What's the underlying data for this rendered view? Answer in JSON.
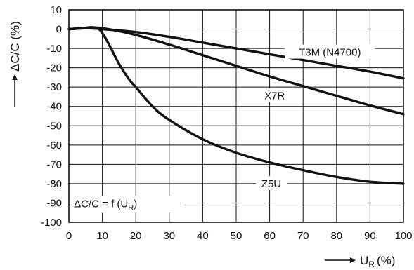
{
  "chart_data": {
    "type": "line",
    "ylabel": "ΔC/C (%)",
    "xlabel": {
      "main": "U",
      "sub": "R",
      "unit": "(%)"
    },
    "annotation": {
      "main": "ΔC/C = f (U",
      "sub": "R",
      "close": ")"
    },
    "xlim": [
      0,
      100
    ],
    "ylim": [
      -100,
      10
    ],
    "x_ticks": [
      0,
      10,
      20,
      30,
      40,
      50,
      60,
      70,
      80,
      90,
      100
    ],
    "y_ticks": [
      10,
      0,
      -10,
      -20,
      -30,
      -40,
      -50,
      -60,
      -70,
      -80,
      -90,
      -100
    ],
    "grid": true,
    "series": [
      {
        "name": "T3M (N4700)",
        "x": [
          0,
          5,
          10,
          20,
          30,
          40,
          50,
          60,
          70,
          80,
          90,
          100
        ],
        "y": [
          0,
          0.5,
          0,
          -1.5,
          -4,
          -7,
          -10,
          -13,
          -16,
          -19,
          -22,
          -25.5
        ]
      },
      {
        "name": "X7R",
        "x": [
          0,
          5,
          8,
          10,
          15,
          20,
          30,
          40,
          50,
          60,
          70,
          80,
          90,
          100
        ],
        "y": [
          0,
          0.5,
          0.8,
          0.5,
          -1,
          -3,
          -8,
          -13.5,
          -19,
          -24.5,
          -29.5,
          -34.5,
          -39.5,
          -44
        ]
      },
      {
        "name": "Z5U",
        "x": [
          0,
          4,
          7,
          9,
          10,
          12,
          15,
          18,
          20,
          25,
          30,
          40,
          50,
          60,
          70,
          80,
          90,
          100
        ],
        "y": [
          0,
          0.5,
          1,
          0,
          -2,
          -8,
          -18,
          -26,
          -30,
          -40,
          -47,
          -57,
          -64,
          -69,
          -73,
          -76.5,
          -79,
          -80
        ]
      }
    ]
  }
}
